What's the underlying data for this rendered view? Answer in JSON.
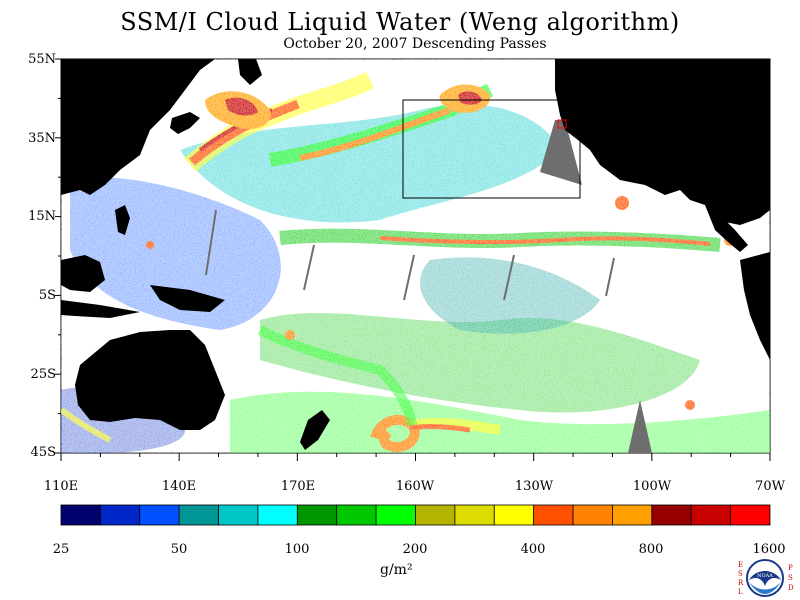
{
  "title": "SSM/I Cloud Liquid Water (Weng algorithm)",
  "subtitle": "October 20, 2007  Descending Passes",
  "map": {
    "lat_range": [
      "45S",
      "55N"
    ],
    "lon_range": [
      "110E",
      "70W"
    ],
    "lat_ticks": [
      "55N",
      "35N",
      "15N",
      "5S",
      "25S",
      "45S"
    ],
    "lon_ticks": [
      "110E",
      "140E",
      "170E",
      "160W",
      "130W",
      "100W",
      "70W"
    ],
    "land_color": "#000000",
    "no_data_color": "#6e6e6e",
    "clear_color": "#ffffff"
  },
  "colorbar": {
    "units": "g/m²",
    "tick_labels": [
      "25",
      "50",
      "100",
      "200",
      "400",
      "800",
      "1600"
    ],
    "colors": [
      "#00006e",
      "#0028c8",
      "#0050ff",
      "#009696",
      "#00c8c8",
      "#00ffff",
      "#009600",
      "#00c800",
      "#00ff00",
      "#b4b400",
      "#dcdc00",
      "#ffff00",
      "#ff5000",
      "#ff8200",
      "#ffa000",
      "#960000",
      "#c80000",
      "#ff0000"
    ]
  },
  "logo": {
    "left_letters": "ESRL",
    "right_letters": "PSD",
    "name": "NOAA"
  }
}
